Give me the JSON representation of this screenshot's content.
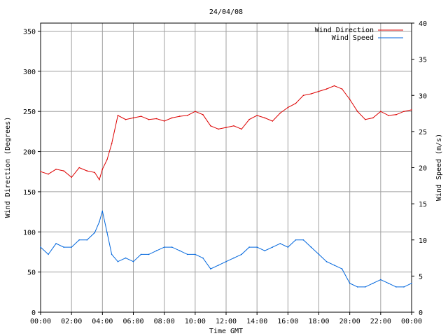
{
  "chart_data": {
    "type": "line",
    "title": "24/04/08",
    "xlabel": "Time GMT",
    "ylabel_left": "Wind Direction (Degrees)",
    "ylabel_right": "Wind Speed (m/s)",
    "x_ticks": [
      "00:00",
      "02:00",
      "04:00",
      "06:00",
      "08:00",
      "10:00",
      "12:00",
      "14:00",
      "16:00",
      "18:00",
      "20:00",
      "22:00",
      "00:00"
    ],
    "xlim_hours": [
      0,
      24
    ],
    "ylim_left": [
      0,
      360
    ],
    "yticks_left": [
      "0",
      "50",
      "100",
      "150",
      "200",
      "250",
      "300",
      "350"
    ],
    "ylim_right": [
      0,
      40
    ],
    "yticks_right": [
      "0",
      "5",
      "10",
      "15",
      "20",
      "25",
      "30",
      "35",
      "40"
    ],
    "grid": true,
    "legend_position": "top-right",
    "series": [
      {
        "name": "Wind Direction",
        "axis": "left",
        "color": "#dd0000",
        "x_hours": [
          0,
          0.5,
          1,
          1.5,
          2,
          2.5,
          3,
          3.5,
          3.8,
          4,
          4.3,
          4.6,
          5,
          5.5,
          6,
          6.5,
          7,
          7.5,
          8,
          8.5,
          9,
          9.5,
          10,
          10.5,
          11,
          11.5,
          12,
          12.5,
          13,
          13.5,
          14,
          14.5,
          15,
          15.5,
          16,
          16.5,
          17,
          17.5,
          18,
          18.5,
          19,
          19.5,
          20,
          20.5,
          21,
          21.5,
          22,
          22.5,
          23,
          23.5,
          24
        ],
        "values": [
          175,
          172,
          178,
          176,
          168,
          180,
          176,
          174,
          165,
          178,
          190,
          210,
          245,
          240,
          242,
          244,
          240,
          241,
          238,
          242,
          244,
          245,
          250,
          246,
          232,
          228,
          230,
          232,
          228,
          240,
          245,
          242,
          238,
          248,
          255,
          260,
          270,
          272,
          275,
          278,
          282,
          278,
          265,
          250,
          240,
          242,
          250,
          245,
          246,
          250,
          252
        ]
      },
      {
        "name": "Wind Speed",
        "axis": "right",
        "color": "#0066dd",
        "x_hours": [
          0,
          0.5,
          1,
          1.5,
          2,
          2.5,
          3,
          3.5,
          3.8,
          4,
          4.3,
          4.6,
          5,
          5.5,
          6,
          6.5,
          7,
          7.5,
          8,
          8.5,
          9,
          9.5,
          10,
          10.5,
          11,
          11.5,
          12,
          12.5,
          13,
          13.5,
          14,
          14.5,
          15,
          15.5,
          16,
          16.5,
          17,
          17.5,
          18,
          18.5,
          19,
          19.5,
          20,
          20.5,
          21,
          21.5,
          22,
          22.5,
          23,
          23.5,
          24
        ],
        "values": [
          9,
          8,
          9.5,
          9,
          9,
          10,
          10,
          11,
          12.5,
          14,
          11,
          8,
          7,
          7.5,
          7,
          8,
          8,
          8.5,
          9,
          9,
          8.5,
          8,
          8,
          7.5,
          6,
          6.5,
          7,
          7.5,
          8,
          9,
          9,
          8.5,
          9,
          9.5,
          9,
          10,
          10,
          9,
          8,
          7,
          6.5,
          6,
          4,
          3.5,
          3.5,
          4,
          4.5,
          4,
          3.5,
          3.5,
          4
        ]
      }
    ]
  }
}
